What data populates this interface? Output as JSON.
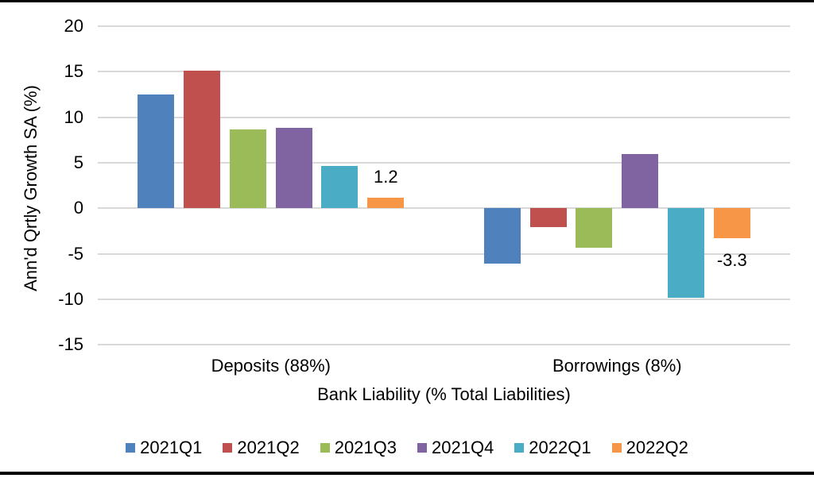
{
  "chart_data": {
    "type": "bar",
    "title": "",
    "ylabel": "Ann'd Qrtly Growth SA (%)",
    "xlabel": "Bank Liability (% Total Liabilities)",
    "categories": [
      "Deposits (88%)",
      "Borrowings (8%)"
    ],
    "series": [
      {
        "name": "2021Q1",
        "color": "#4F81BD",
        "values": [
          12.5,
          -6.1
        ]
      },
      {
        "name": "2021Q2",
        "color": "#C0504D",
        "values": [
          15.1,
          -2.1
        ]
      },
      {
        "name": "2021Q3",
        "color": "#9BBB59",
        "values": [
          8.7,
          -4.3
        ]
      },
      {
        "name": "2021Q4",
        "color": "#8064A2",
        "values": [
          8.8,
          6.0
        ]
      },
      {
        "name": "2022Q1",
        "color": "#4BACC6",
        "values": [
          4.7,
          -9.8
        ]
      },
      {
        "name": "2022Q2",
        "color": "#F79646",
        "values": [
          1.2,
          -3.3
        ]
      }
    ],
    "y_ticks": [
      20,
      15,
      10,
      5,
      0,
      -5,
      -10,
      -15
    ],
    "ylim": [
      -15,
      20
    ],
    "grid": true,
    "legend_position": "bottom",
    "gridline_color": "#d9d9d9",
    "data_labels": [
      {
        "category": "Deposits (88%)",
        "series": "2022Q2",
        "text": "1.2"
      },
      {
        "category": "Borrowings (8%)",
        "series": "2022Q2",
        "text": "-3.3"
      }
    ]
  }
}
